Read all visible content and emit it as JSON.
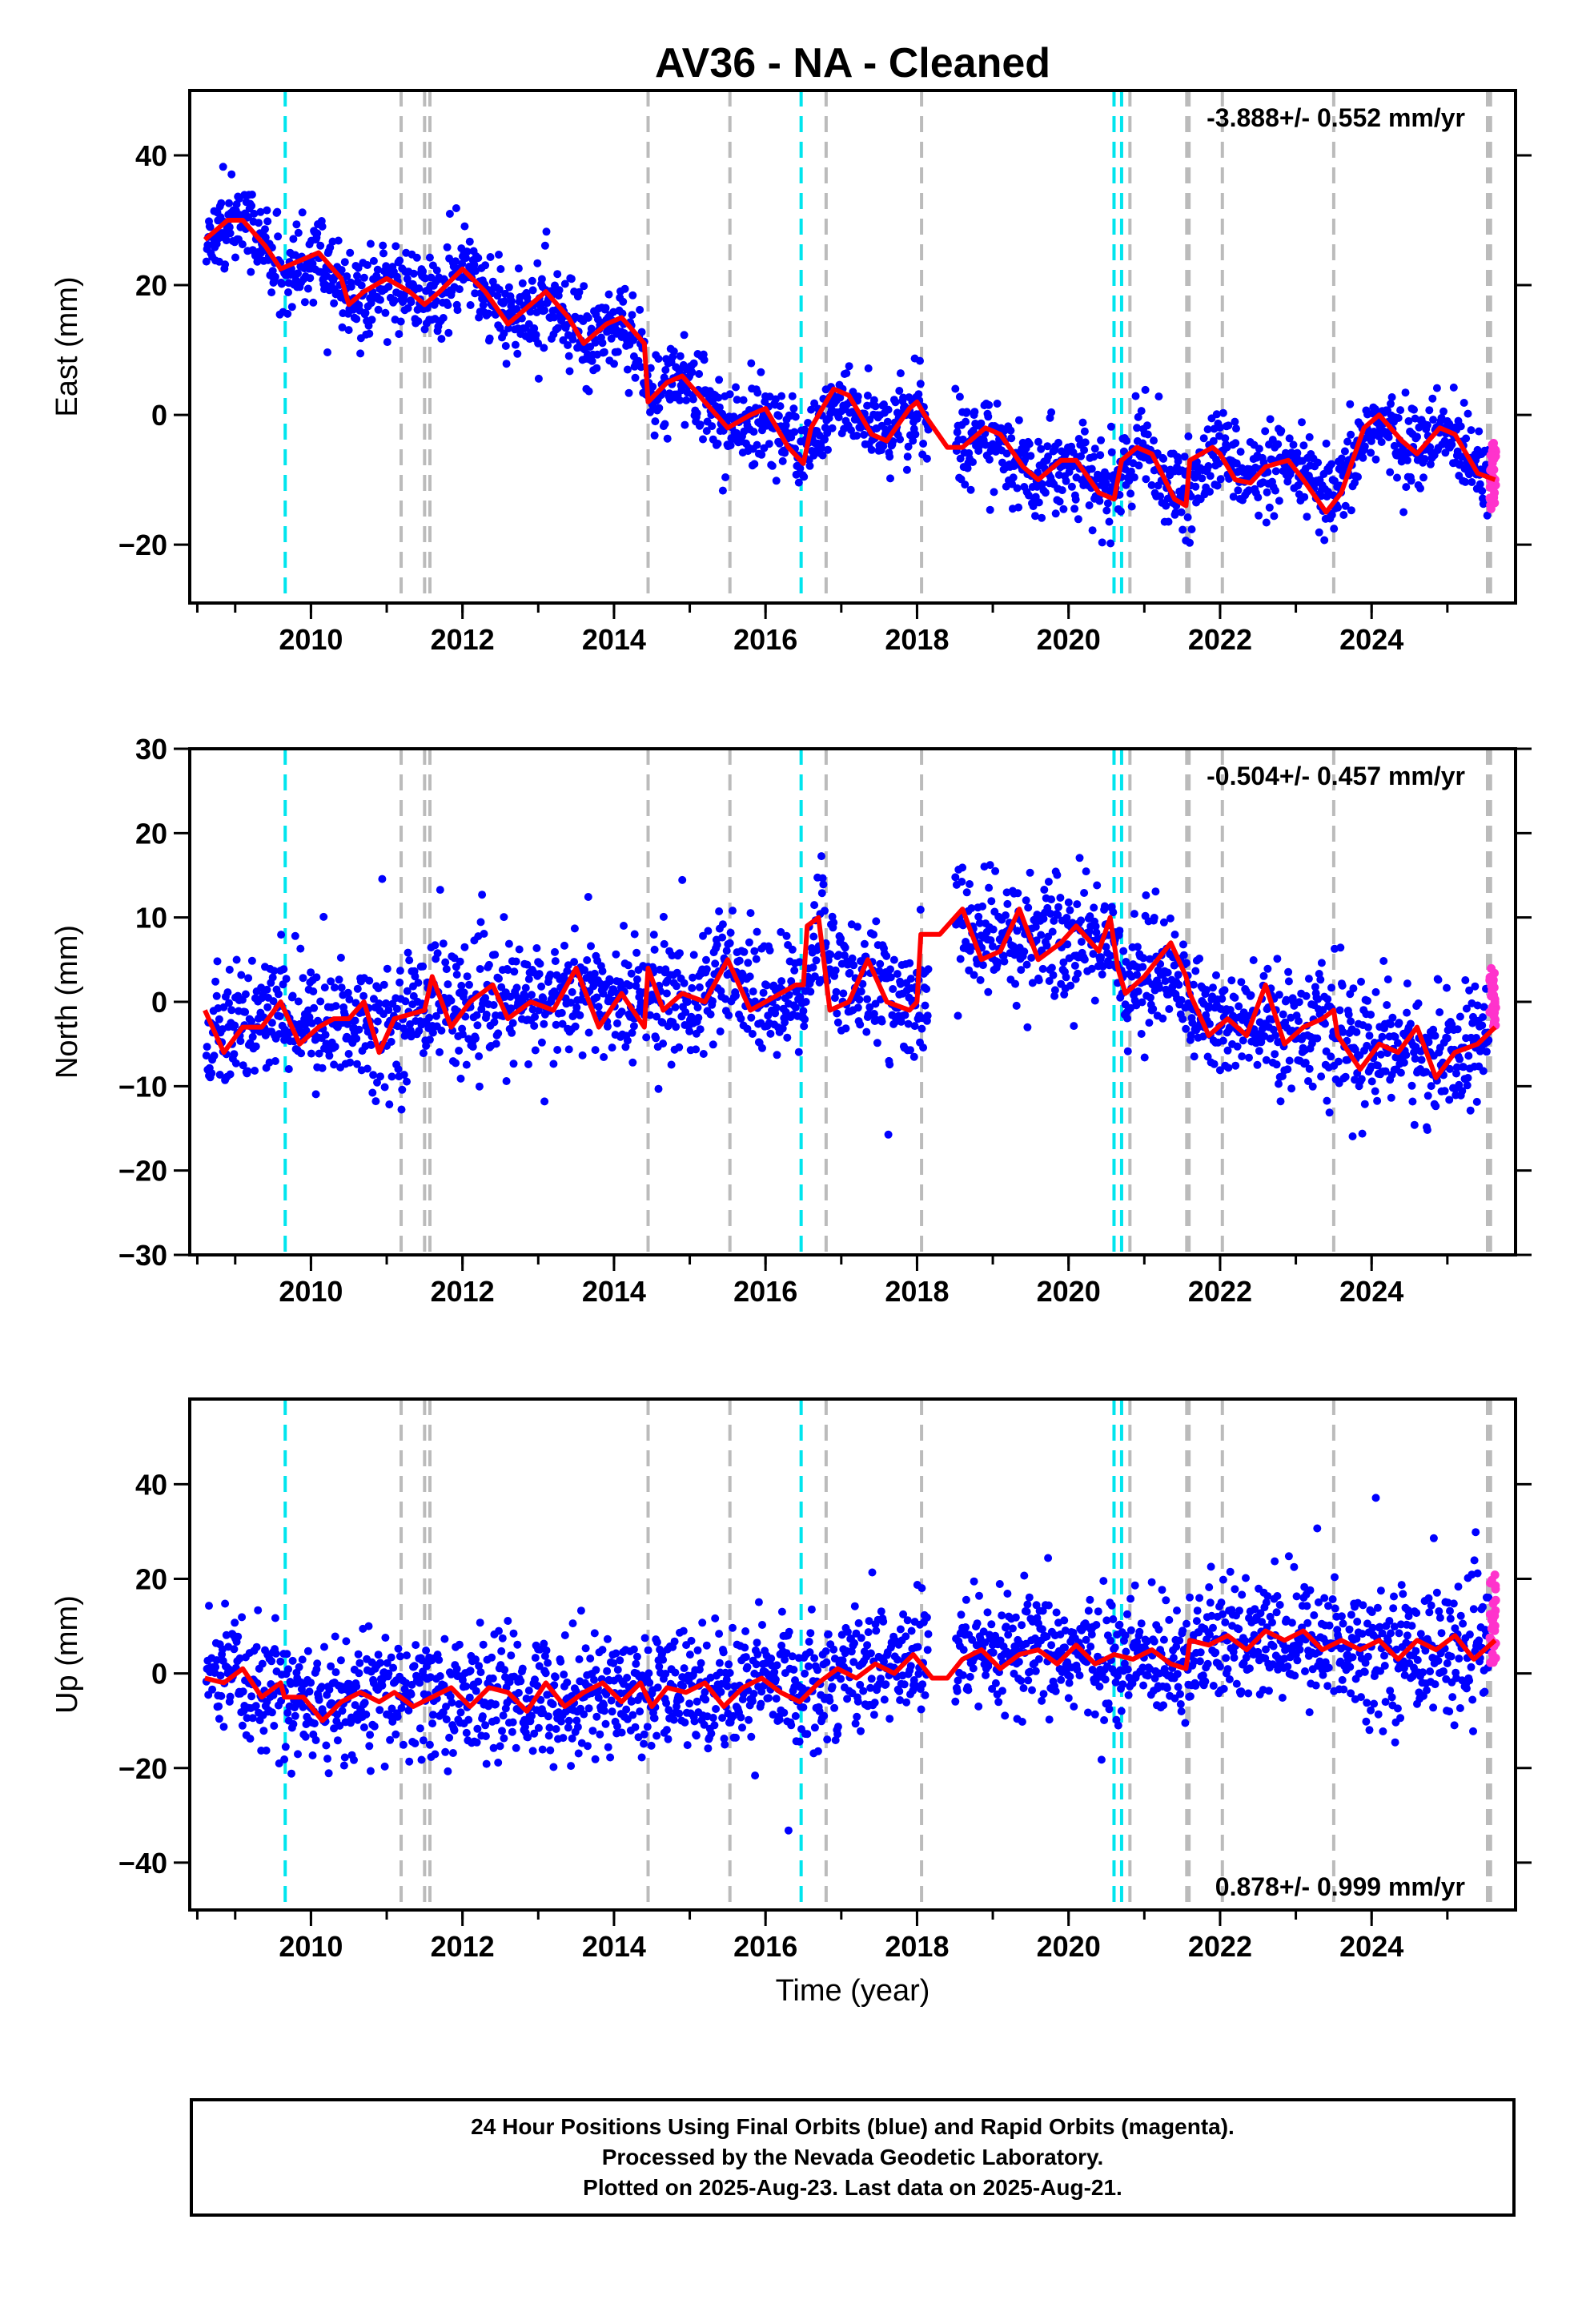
{
  "title": "AV36  - NA - Cleaned",
  "x_label": "Time (year)",
  "footer_lines": [
    "24 Hour Positions Using Final Orbits (blue) and Rapid Orbits (magenta).",
    "Processed by the Nevada Geodetic Laboratory.",
    "Plotted on 2025-Aug-23. Last data on 2025-Aug-21."
  ],
  "colors": {
    "final": "#0000ff",
    "rapid": "#ff33cc",
    "model": "#ff0000",
    "antenna_event": "#00e5ee",
    "equipment_event": "#bbbbbb"
  },
  "chart_data": [
    {
      "type": "scatter",
      "component": "East",
      "ylabel": "East (mm)",
      "xlim": [
        2008.4,
        2025.9
      ],
      "ylim": [
        -29,
        50
      ],
      "yticks": [
        -20,
        0,
        20,
        40
      ],
      "xticks": [
        2010,
        2012,
        2014,
        2016,
        2018,
        2020,
        2022,
        2024
      ],
      "velocity_label": "-3.888+/- 0.552 mm/yr",
      "velocity_position": "top-right",
      "model_curve": [
        [
          2008.6,
          27
        ],
        [
          2008.9,
          30
        ],
        [
          2009.1,
          30
        ],
        [
          2009.4,
          26
        ],
        [
          2009.6,
          22.5
        ],
        [
          2009.9,
          24
        ],
        [
          2010.1,
          25
        ],
        [
          2010.4,
          21
        ],
        [
          2010.5,
          17
        ],
        [
          2010.7,
          19
        ],
        [
          2011.0,
          21
        ],
        [
          2011.3,
          19
        ],
        [
          2011.5,
          17
        ],
        [
          2011.7,
          19
        ],
        [
          2012.0,
          22.5
        ],
        [
          2012.3,
          19
        ],
        [
          2012.6,
          14
        ],
        [
          2012.9,
          17
        ],
        [
          2013.1,
          19
        ],
        [
          2013.4,
          15
        ],
        [
          2013.6,
          11
        ],
        [
          2013.9,
          14
        ],
        [
          2014.1,
          15
        ],
        [
          2014.4,
          11
        ],
        [
          2014.45,
          2
        ],
        [
          2014.7,
          5
        ],
        [
          2014.9,
          6
        ],
        [
          2015.2,
          2
        ],
        [
          2015.5,
          -2
        ],
        [
          2015.8,
          0
        ],
        [
          2016.0,
          1
        ],
        [
          2016.3,
          -5
        ],
        [
          2016.5,
          -7.5
        ],
        [
          2016.6,
          -2
        ],
        [
          2016.9,
          4
        ],
        [
          2017.1,
          3
        ],
        [
          2017.4,
          -3
        ],
        [
          2017.6,
          -4
        ],
        [
          2017.9,
          1
        ],
        [
          2018.0,
          2
        ],
        [
          2018.1,
          0
        ],
        [
          2018.4,
          -5
        ],
        [
          2018.6,
          -5
        ],
        [
          2018.9,
          -2
        ],
        [
          2019.1,
          -3
        ],
        [
          2019.4,
          -8
        ],
        [
          2019.6,
          -10
        ],
        [
          2019.9,
          -7
        ],
        [
          2020.1,
          -7
        ],
        [
          2020.4,
          -12
        ],
        [
          2020.6,
          -13
        ],
        [
          2020.7,
          -7
        ],
        [
          2020.9,
          -5
        ],
        [
          2021.1,
          -6
        ],
        [
          2021.4,
          -13
        ],
        [
          2021.55,
          -14
        ],
        [
          2021.6,
          -7
        ],
        [
          2021.9,
          -5
        ],
        [
          2022.0,
          -6
        ],
        [
          2022.2,
          -10
        ],
        [
          2022.4,
          -10.5
        ],
        [
          2022.6,
          -8
        ],
        [
          2022.9,
          -7
        ],
        [
          2023.1,
          -10
        ],
        [
          2023.4,
          -15
        ],
        [
          2023.6,
          -12
        ],
        [
          2023.9,
          -2
        ],
        [
          2024.1,
          0
        ],
        [
          2024.4,
          -4
        ],
        [
          2024.6,
          -6
        ],
        [
          2024.9,
          -2
        ],
        [
          2025.1,
          -3
        ],
        [
          2025.4,
          -9
        ],
        [
          2025.63,
          -10
        ]
      ],
      "scatter_anchors": [
        [
          2008.6,
          27
        ],
        [
          2009.1,
          30
        ],
        [
          2009.6,
          22.5
        ],
        [
          2010.1,
          24
        ],
        [
          2010.6,
          18
        ],
        [
          2011.1,
          21
        ],
        [
          2011.6,
          18
        ],
        [
          2012.1,
          22
        ],
        [
          2012.6,
          15
        ],
        [
          2013.1,
          18
        ],
        [
          2013.6,
          12
        ],
        [
          2014.1,
          14
        ],
        [
          2014.5,
          4
        ],
        [
          2015.0,
          5
        ],
        [
          2015.5,
          -2
        ],
        [
          2016.0,
          0
        ],
        [
          2016.5,
          -6
        ],
        [
          2017.0,
          3
        ],
        [
          2017.5,
          -3
        ],
        [
          2018.0,
          1
        ],
        [
          2018.5,
          -5
        ],
        [
          2019.0,
          -3
        ],
        [
          2019.5,
          -9
        ],
        [
          2020.0,
          -7
        ],
        [
          2020.5,
          -12
        ],
        [
          2021.0,
          -5
        ],
        [
          2021.5,
          -13
        ],
        [
          2022.0,
          -5
        ],
        [
          2022.5,
          -10
        ],
        [
          2023.0,
          -8
        ],
        [
          2023.5,
          -14
        ],
        [
          2024.0,
          -1
        ],
        [
          2024.5,
          -5
        ],
        [
          2025.0,
          -3
        ],
        [
          2025.63,
          -9
        ]
      ],
      "scatter_sd": 3.2
    },
    {
      "type": "scatter",
      "component": "North",
      "ylabel": "North (mm)",
      "xlim": [
        2008.4,
        2025.9
      ],
      "ylim": [
        -30,
        30
      ],
      "yticks": [
        -30,
        -20,
        -10,
        0,
        10,
        20,
        30
      ],
      "xticks": [
        2010,
        2012,
        2014,
        2016,
        2018,
        2020,
        2022,
        2024
      ],
      "velocity_label": "-0.504+/- 0.457 mm/yr",
      "velocity_position": "top-right",
      "model_curve": [
        [
          2008.6,
          -1
        ],
        [
          2008.85,
          -6
        ],
        [
          2009.1,
          -3
        ],
        [
          2009.35,
          -3
        ],
        [
          2009.6,
          0
        ],
        [
          2009.85,
          -5
        ],
        [
          2010.1,
          -3
        ],
        [
          2010.3,
          -2
        ],
        [
          2010.5,
          -2
        ],
        [
          2010.7,
          0
        ],
        [
          2010.9,
          -6
        ],
        [
          2011.1,
          -2
        ],
        [
          2011.5,
          -1
        ],
        [
          2011.6,
          3
        ],
        [
          2011.85,
          -3
        ],
        [
          2012.1,
          0
        ],
        [
          2012.4,
          2
        ],
        [
          2012.6,
          -2
        ],
        [
          2012.9,
          0
        ],
        [
          2013.2,
          -1
        ],
        [
          2013.5,
          4
        ],
        [
          2013.8,
          -3
        ],
        [
          2014.1,
          1
        ],
        [
          2014.4,
          -3
        ],
        [
          2014.45,
          4
        ],
        [
          2014.65,
          -1
        ],
        [
          2014.9,
          1
        ],
        [
          2015.2,
          0
        ],
        [
          2015.5,
          5
        ],
        [
          2015.8,
          -1
        ],
        [
          2016.0,
          0
        ],
        [
          2016.4,
          2
        ],
        [
          2016.5,
          2
        ],
        [
          2016.55,
          9
        ],
        [
          2016.7,
          10
        ],
        [
          2016.85,
          -1
        ],
        [
          2017.1,
          0
        ],
        [
          2017.35,
          5
        ],
        [
          2017.6,
          0
        ],
        [
          2017.9,
          -1
        ],
        [
          2018.0,
          0
        ],
        [
          2018.05,
          8
        ],
        [
          2018.3,
          8
        ],
        [
          2018.6,
          11
        ],
        [
          2018.85,
          5
        ],
        [
          2019.1,
          6
        ],
        [
          2019.35,
          11
        ],
        [
          2019.6,
          5
        ],
        [
          2019.9,
          7
        ],
        [
          2020.1,
          9
        ],
        [
          2020.4,
          6
        ],
        [
          2020.55,
          10
        ],
        [
          2020.65,
          4
        ],
        [
          2020.75,
          1
        ],
        [
          2021.0,
          3
        ],
        [
          2021.35,
          7
        ],
        [
          2021.55,
          3
        ],
        [
          2021.6,
          1
        ],
        [
          2021.85,
          -4
        ],
        [
          2022.1,
          -2
        ],
        [
          2022.35,
          -4
        ],
        [
          2022.6,
          2
        ],
        [
          2022.85,
          -5
        ],
        [
          2023.1,
          -3
        ],
        [
          2023.35,
          -2
        ],
        [
          2023.5,
          -1
        ],
        [
          2023.55,
          -4
        ],
        [
          2023.85,
          -8
        ],
        [
          2024.1,
          -5
        ],
        [
          2024.35,
          -6
        ],
        [
          2024.6,
          -3
        ],
        [
          2024.85,
          -9
        ],
        [
          2025.1,
          -6
        ],
        [
          2025.4,
          -5
        ],
        [
          2025.63,
          -3
        ]
      ],
      "scatter_anchors": [
        [
          2008.6,
          -5
        ],
        [
          2009.1,
          -3
        ],
        [
          2009.6,
          -1
        ],
        [
          2010.1,
          -3
        ],
        [
          2010.6,
          -2
        ],
        [
          2011.1,
          -3
        ],
        [
          2011.6,
          1
        ],
        [
          2012.1,
          -1
        ],
        [
          2012.6,
          0
        ],
        [
          2013.1,
          0
        ],
        [
          2013.6,
          1
        ],
        [
          2014.1,
          0
        ],
        [
          2014.5,
          2
        ],
        [
          2015.0,
          0
        ],
        [
          2015.5,
          3
        ],
        [
          2016.0,
          0
        ],
        [
          2016.5,
          1
        ],
        [
          2016.7,
          9
        ],
        [
          2017.0,
          3
        ],
        [
          2017.5,
          2
        ],
        [
          2018.0,
          -2
        ],
        [
          2018.5,
          10
        ],
        [
          2019.0,
          7
        ],
        [
          2019.5,
          8
        ],
        [
          2020.0,
          7
        ],
        [
          2020.5,
          8
        ],
        [
          2020.8,
          3
        ],
        [
          2021.3,
          4
        ],
        [
          2021.8,
          -2
        ],
        [
          2022.3,
          -3
        ],
        [
          2022.8,
          -3
        ],
        [
          2023.3,
          -3
        ],
        [
          2023.8,
          -6
        ],
        [
          2024.3,
          -5
        ],
        [
          2024.8,
          -7
        ],
        [
          2025.2,
          -6
        ],
        [
          2025.63,
          -4
        ]
      ],
      "scatter_sd": 3.5
    },
    {
      "type": "scatter",
      "component": "Up",
      "ylabel": "Up (mm)",
      "xlim": [
        2008.4,
        2025.9
      ],
      "ylim": [
        -50,
        58
      ],
      "yticks": [
        -40,
        -20,
        0,
        20,
        40
      ],
      "xticks": [
        2010,
        2012,
        2014,
        2016,
        2018,
        2020,
        2022,
        2024
      ],
      "velocity_label": "0.878+/- 0.999 mm/yr",
      "velocity_position": "bottom-right",
      "model_curve": [
        [
          2008.6,
          -1
        ],
        [
          2008.85,
          -2
        ],
        [
          2009.1,
          1
        ],
        [
          2009.35,
          -5
        ],
        [
          2009.6,
          -2
        ],
        [
          2009.65,
          -5
        ],
        [
          2009.9,
          -5
        ],
        [
          2010.15,
          -10
        ],
        [
          2010.4,
          -6
        ],
        [
          2010.65,
          -4
        ],
        [
          2010.9,
          -6
        ],
        [
          2011.1,
          -4
        ],
        [
          2011.35,
          -7
        ],
        [
          2011.6,
          -5
        ],
        [
          2011.85,
          -3
        ],
        [
          2012.1,
          -7
        ],
        [
          2012.35,
          -3
        ],
        [
          2012.6,
          -4
        ],
        [
          2012.85,
          -8
        ],
        [
          2013.1,
          -2
        ],
        [
          2013.35,
          -7
        ],
        [
          2013.6,
          -4
        ],
        [
          2013.85,
          -2
        ],
        [
          2014.1,
          -6
        ],
        [
          2014.35,
          -2
        ],
        [
          2014.5,
          -7
        ],
        [
          2014.7,
          -3
        ],
        [
          2014.95,
          -4
        ],
        [
          2015.2,
          -2
        ],
        [
          2015.45,
          -7
        ],
        [
          2015.7,
          -3
        ],
        [
          2015.95,
          -1
        ],
        [
          2016.2,
          -4
        ],
        [
          2016.45,
          -6
        ],
        [
          2016.7,
          -2
        ],
        [
          2016.95,
          1
        ],
        [
          2017.2,
          -1
        ],
        [
          2017.45,
          2
        ],
        [
          2017.7,
          0
        ],
        [
          2017.95,
          4
        ],
        [
          2018.2,
          -1
        ],
        [
          2018.4,
          -1
        ],
        [
          2018.6,
          3
        ],
        [
          2018.85,
          5
        ],
        [
          2019.1,
          1
        ],
        [
          2019.35,
          4
        ],
        [
          2019.6,
          5
        ],
        [
          2019.85,
          2
        ],
        [
          2020.1,
          6
        ],
        [
          2020.35,
          2
        ],
        [
          2020.6,
          4
        ],
        [
          2020.85,
          3
        ],
        [
          2021.1,
          5
        ],
        [
          2021.35,
          2
        ],
        [
          2021.55,
          1
        ],
        [
          2021.6,
          7
        ],
        [
          2021.85,
          6
        ],
        [
          2022.1,
          8
        ],
        [
          2022.35,
          5
        ],
        [
          2022.6,
          9
        ],
        [
          2022.85,
          7
        ],
        [
          2023.1,
          9
        ],
        [
          2023.35,
          5
        ],
        [
          2023.6,
          7
        ],
        [
          2023.85,
          5
        ],
        [
          2024.1,
          7
        ],
        [
          2024.35,
          3
        ],
        [
          2024.6,
          7
        ],
        [
          2024.85,
          5
        ],
        [
          2025.1,
          8
        ],
        [
          2025.35,
          3
        ],
        [
          2025.63,
          7
        ]
      ],
      "scatter_anchors": [
        [
          2008.6,
          -2
        ],
        [
          2009.1,
          -1
        ],
        [
          2009.6,
          -3
        ],
        [
          2010.1,
          -8
        ],
        [
          2010.6,
          -5
        ],
        [
          2011.1,
          -5
        ],
        [
          2011.6,
          -5
        ],
        [
          2012.1,
          -5
        ],
        [
          2012.6,
          -5
        ],
        [
          2013.1,
          -5
        ],
        [
          2013.6,
          -4
        ],
        [
          2014.1,
          -4
        ],
        [
          2014.6,
          -4
        ],
        [
          2015.1,
          -3
        ],
        [
          2015.6,
          -3
        ],
        [
          2016.1,
          -2
        ],
        [
          2016.6,
          -2
        ],
        [
          2017.1,
          1
        ],
        [
          2017.6,
          2
        ],
        [
          2018.0,
          3
        ],
        [
          2018.6,
          4
        ],
        [
          2019.1,
          3
        ],
        [
          2019.6,
          4
        ],
        [
          2020.1,
          4
        ],
        [
          2020.6,
          3
        ],
        [
          2021.1,
          3
        ],
        [
          2021.6,
          5
        ],
        [
          2022.1,
          6
        ],
        [
          2022.6,
          7
        ],
        [
          2023.1,
          7
        ],
        [
          2023.6,
          6
        ],
        [
          2024.1,
          5
        ],
        [
          2024.6,
          5
        ],
        [
          2025.1,
          5
        ],
        [
          2025.63,
          5
        ]
      ],
      "scatter_sd": 6.5
    }
  ],
  "rapid_points": {
    "x_range": [
      2025.56,
      2025.64
    ],
    "East": [
      -4,
      -15
    ],
    "North": [
      -3,
      4
    ],
    "Up": [
      2,
      22
    ]
  },
  "event_lines": {
    "antenna_event": [
      2009.66,
      2016.47,
      2020.6,
      2020.7
    ],
    "equipment_event": [
      2011.19,
      2011.5,
      2011.57,
      2014.45,
      2015.53,
      2016.8,
      2018.06,
      2020.81,
      2021.56,
      2021.59,
      2022.03,
      2023.5,
      2025.53,
      2025.57
    ]
  }
}
